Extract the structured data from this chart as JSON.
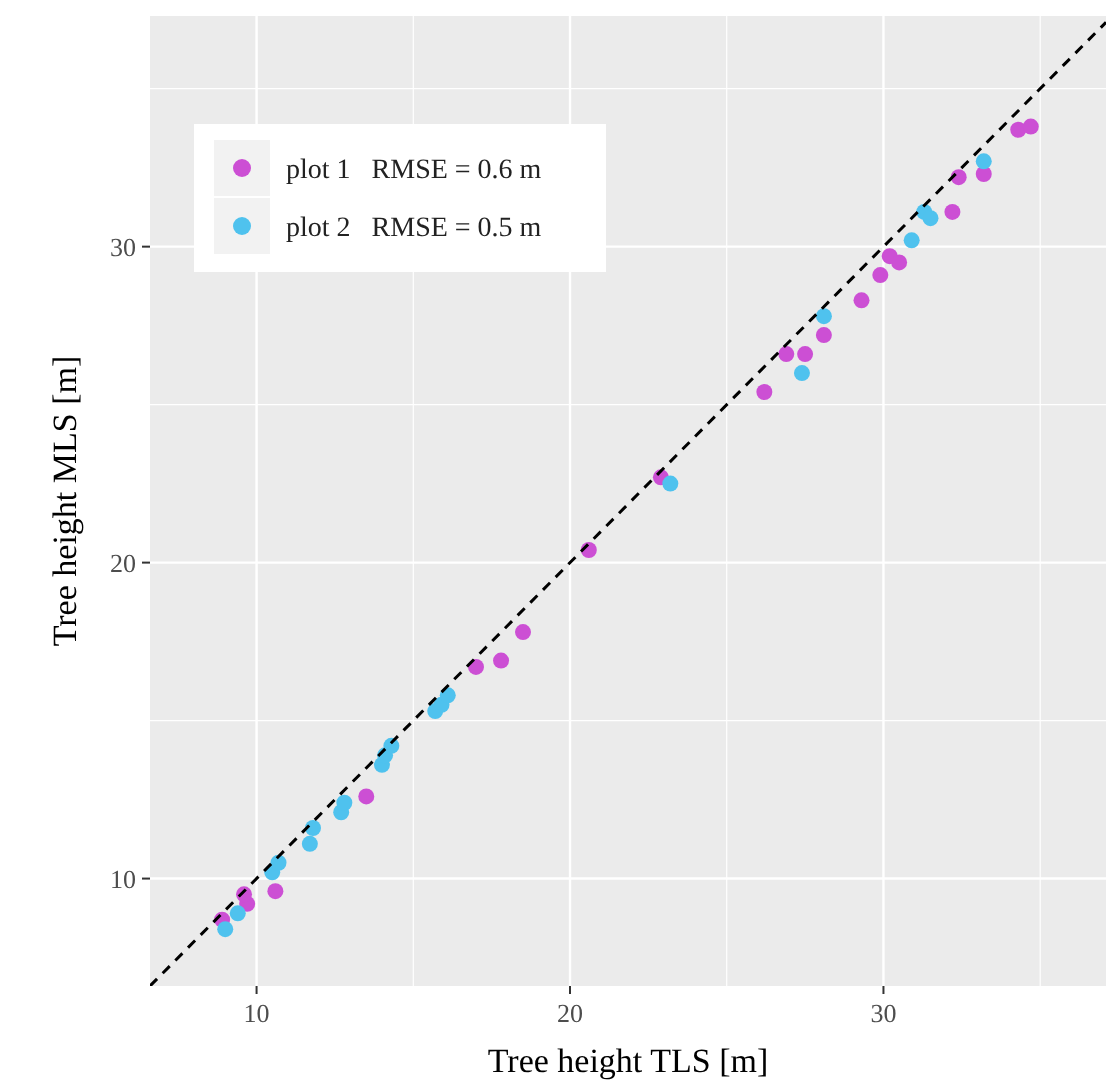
{
  "chart_data": {
    "type": "scatter",
    "xlabel": "Tree height TLS [m]",
    "ylabel": "Tree height MLS [m]",
    "xlim": [
      6.6,
      37.1
    ],
    "ylim": [
      6.6,
      37.3
    ],
    "xticks": [
      10,
      {
        "value": 15,
        "label": null
      },
      20,
      {
        "value": 25,
        "label": null
      },
      30,
      {
        "value": 35,
        "label": null
      }
    ],
    "yticks": [
      10,
      {
        "value": 15,
        "label": null
      },
      20,
      {
        "value": 25,
        "label": null
      },
      30,
      {
        "value": 35,
        "label": null
      }
    ],
    "grid": true,
    "legend": "top left",
    "marker": "circle",
    "series": [
      {
        "name": "plot 1   RMSE = 0.6 m",
        "color": "#cc4fd4",
        "x": [
          8.9,
          9.7,
          9.6,
          10.6,
          13.5,
          17.0,
          17.8,
          18.5,
          20.6,
          22.9,
          26.2,
          26.9,
          27.5,
          28.1,
          29.3,
          29.9,
          30.2,
          30.5,
          32.2,
          32.4,
          33.2,
          34.3,
          34.7
        ],
        "values": [
          8.7,
          9.2,
          9.5,
          9.6,
          12.6,
          16.7,
          16.9,
          17.8,
          20.4,
          22.7,
          25.4,
          26.6,
          26.6,
          27.2,
          28.3,
          29.1,
          29.7,
          29.5,
          31.1,
          32.2,
          32.3,
          33.7,
          33.8
        ]
      },
      {
        "name": "plot 2   RMSE = 0.5 m",
        "color": "#4fc2ee",
        "x": [
          9.0,
          9.4,
          10.5,
          10.7,
          11.7,
          11.8,
          12.7,
          12.8,
          14.0,
          14.1,
          14.3,
          15.7,
          15.9,
          16.1,
          23.2,
          27.4,
          28.1,
          30.9,
          31.3,
          31.5,
          33.2
        ],
        "values": [
          8.4,
          8.9,
          10.2,
          10.5,
          11.1,
          11.6,
          12.1,
          12.4,
          13.6,
          13.9,
          14.2,
          15.3,
          15.5,
          15.8,
          22.5,
          26.0,
          27.8,
          30.2,
          31.1,
          30.9,
          32.7
        ]
      },
      {
        "type": "line",
        "color": "#000000",
        "line_style": "dashed",
        "marker": "none",
        "x": [
          6.6,
          37.1
        ],
        "values": [
          6.6,
          37.1
        ]
      }
    ]
  }
}
